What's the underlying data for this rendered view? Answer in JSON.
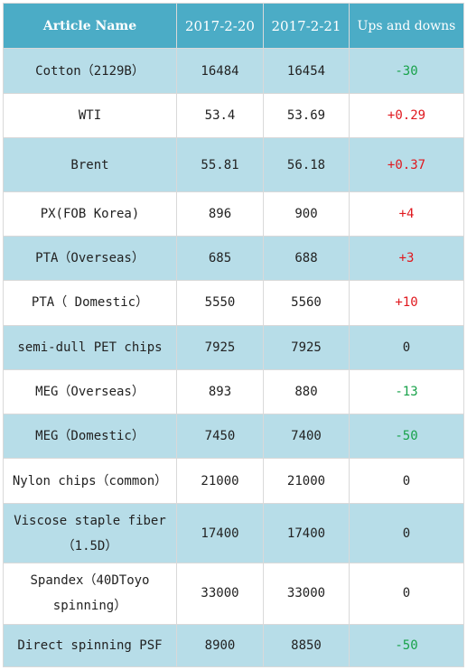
{
  "table": {
    "headers": [
      "Article Name",
      "2017-2-20",
      "2017-2-21",
      "Ups and downs"
    ],
    "colors": {
      "header_bg": "#4bacc6",
      "shaded_row": "#b7dde8",
      "increase": "#e0181e",
      "decrease": "#18a24a"
    },
    "rows": [
      {
        "name": "Cotton（2129B）",
        "v1": "16484",
        "v2": "16454",
        "change": "-30",
        "trend": "neg"
      },
      {
        "name": "WTI",
        "v1": "53.4",
        "v2": "53.69",
        "change": "+0.29",
        "trend": "pos"
      },
      {
        "name": "Brent",
        "v1": "55.81",
        "v2": "56.18",
        "change": "+0.37",
        "trend": "pos"
      },
      {
        "name": "PX(FOB Korea)",
        "v1": "896",
        "v2": "900",
        "change": "+4",
        "trend": "pos"
      },
      {
        "name": "PTA（Overseas）",
        "v1": "685",
        "v2": "688",
        "change": "+3",
        "trend": "pos"
      },
      {
        "name": "PTA（ Domestic）",
        "v1": "5550",
        "v2": "5560",
        "change": "+10",
        "trend": "pos"
      },
      {
        "name": "semi-dull PET chips",
        "v1": "7925",
        "v2": "7925",
        "change": "0",
        "trend": "zero"
      },
      {
        "name": "MEG（Overseas）",
        "v1": "893",
        "v2": "880",
        "change": "-13",
        "trend": "neg"
      },
      {
        "name": "MEG（Domestic）",
        "v1": "7450",
        "v2": "7400",
        "change": "-50",
        "trend": "neg"
      },
      {
        "name": "Nylon chips（common）",
        "v1": "21000",
        "v2": "21000",
        "change": "0",
        "trend": "zero"
      },
      {
        "name": "Viscose staple fiber（1.5D）",
        "v1": "17400",
        "v2": "17400",
        "change": "0",
        "trend": "zero"
      },
      {
        "name": "Spandex（40DToyo spinning）",
        "v1": "33000",
        "v2": "33000",
        "change": "0",
        "trend": "zero"
      },
      {
        "name": "Direct spinning PSF",
        "v1": "8900",
        "v2": "8850",
        "change": "-50",
        "trend": "neg"
      }
    ]
  }
}
